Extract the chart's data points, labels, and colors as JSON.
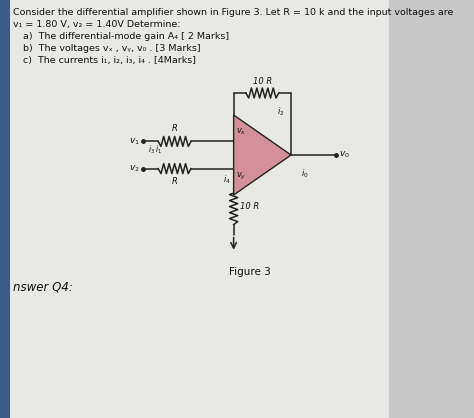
{
  "bg_color": "#c8c8c8",
  "paper_color": "#e8e8e4",
  "title_text": "Consider the differential amplifier shown in Figure 3. Let R = 10 k and the input voltages are",
  "line2": "v₁ = 1.80 V, v₂ = 1.40V Determine:",
  "item_a": "a)  The differential-mode gain A₄ [ 2 Marks]",
  "item_b": "b)  The voltages vₓ , vᵧ, v₀ . [3 Marks]",
  "item_c": "c)  The currents i₁, i₂, i₃, i₄ . [4Marks]",
  "figure_label": "Figure 3",
  "answer_label": "nswer Q4:",
  "text_color": "#111111",
  "wire_color": "#222222",
  "opamp_fill": "#d4909a",
  "opamp_outline": "#222222",
  "blue_bar_color": "#3a5a8a"
}
